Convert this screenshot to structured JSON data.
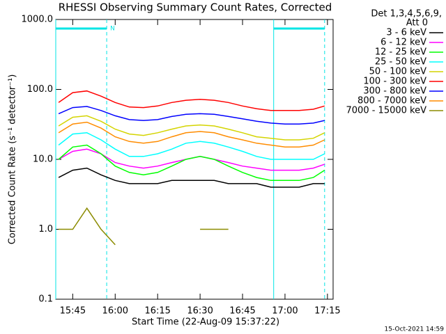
{
  "chart_data": {
    "type": "line",
    "title": "RHESSI Observing Summary Count Rates, Corrected",
    "x_label": "Start Time (22-Aug-09 15:37:22)",
    "y_label": "Corrected Count Rate (s⁻¹ detector⁻¹)",
    "legend_title": [
      "Det 1,3,4,5,6,9,",
      "Att 0"
    ],
    "legend": "right",
    "footer": "15-Oct-2021 14:59",
    "log_y": true,
    "xlim": [
      "15:39",
      "17:17"
    ],
    "xticks": [
      "15:45",
      "16:00",
      "16:15",
      "16:30",
      "16:45",
      "17:00",
      "17:15"
    ],
    "ylim": [
      0.1,
      1000
    ],
    "yticks": [
      {
        "value": 1000,
        "label": "1000.0"
      },
      {
        "value": 100,
        "label": "100.0"
      },
      {
        "value": 10,
        "label": "10.0"
      },
      {
        "value": 1,
        "label": "1.0"
      },
      {
        "value": 0.1,
        "label": "0.1"
      }
    ],
    "intervals": [
      {
        "start": "15:39",
        "end": "15:57",
        "label": "N",
        "color": "#00e5e5"
      },
      {
        "start": "16:56",
        "end": "17:14",
        "color": "#00e5e5"
      }
    ],
    "x": [
      "15:40",
      "15:45",
      "15:50",
      "15:55",
      "16:00",
      "16:05",
      "16:10",
      "16:15",
      "16:20",
      "16:25",
      "16:30",
      "16:35",
      "16:40",
      "16:45",
      "16:50",
      "16:55",
      "17:00",
      "17:05",
      "17:10",
      "17:14"
    ],
    "series": [
      {
        "name": "3 - 6 keV",
        "color": "#000000",
        "values": [
          5.5,
          7,
          7.5,
          6,
          5,
          4.5,
          4.5,
          4.5,
          5,
          5,
          5,
          5,
          4.5,
          4.5,
          4.5,
          4,
          4,
          4,
          4.5,
          4.5
        ]
      },
      {
        "name": "6 - 12 keV",
        "color": "#ff00ff",
        "values": [
          10,
          13,
          14,
          12,
          9,
          8,
          7.5,
          8,
          9,
          10,
          11,
          10,
          9,
          8,
          7.5,
          7,
          7,
          7,
          7.5,
          8.5
        ]
      },
      {
        "name": "12 - 25 keV",
        "color": "#00ff00",
        "values": [
          10,
          15,
          16,
          12,
          8,
          6.5,
          6,
          6.5,
          8,
          10,
          11,
          10,
          8,
          6.5,
          5.5,
          5,
          5,
          5,
          5.5,
          7
        ]
      },
      {
        "name": "25 - 50 keV",
        "color": "#00ffff",
        "values": [
          16,
          23,
          24,
          19,
          14,
          11,
          11,
          12,
          14,
          17,
          18,
          17,
          15,
          13,
          11,
          10,
          10,
          10,
          10,
          12
        ]
      },
      {
        "name": "50 - 100 keV",
        "color": "#d4d400",
        "values": [
          30,
          40,
          42,
          35,
          27,
          23,
          22,
          24,
          27,
          30,
          31,
          30,
          27,
          24,
          21,
          20,
          19,
          19,
          20,
          24
        ]
      },
      {
        "name": "100 - 300 keV",
        "color": "#ff0000",
        "values": [
          65,
          90,
          95,
          80,
          65,
          56,
          55,
          58,
          65,
          70,
          72,
          70,
          65,
          58,
          53,
          50,
          50,
          50,
          52,
          58
        ]
      },
      {
        "name": "300 - 800 keV",
        "color": "#0000ff",
        "values": [
          45,
          55,
          57,
          50,
          42,
          37,
          36,
          37,
          41,
          44,
          45,
          44,
          41,
          38,
          35,
          33,
          32,
          32,
          33,
          36
        ]
      },
      {
        "name": "800 - 7000 keV",
        "color": "#ff8c00",
        "values": [
          24,
          32,
          34,
          28,
          21,
          18,
          17,
          18,
          21,
          24,
          25,
          24,
          21,
          19,
          17,
          16,
          15,
          15,
          16,
          19
        ]
      },
      {
        "name": "7000 - 15000 keV",
        "color": "#8b8b00",
        "values": [
          1,
          1,
          2,
          1,
          0.6,
          null,
          null,
          null,
          null,
          null,
          1,
          1,
          1,
          null,
          null,
          null,
          null,
          null,
          null,
          null
        ]
      }
    ]
  }
}
